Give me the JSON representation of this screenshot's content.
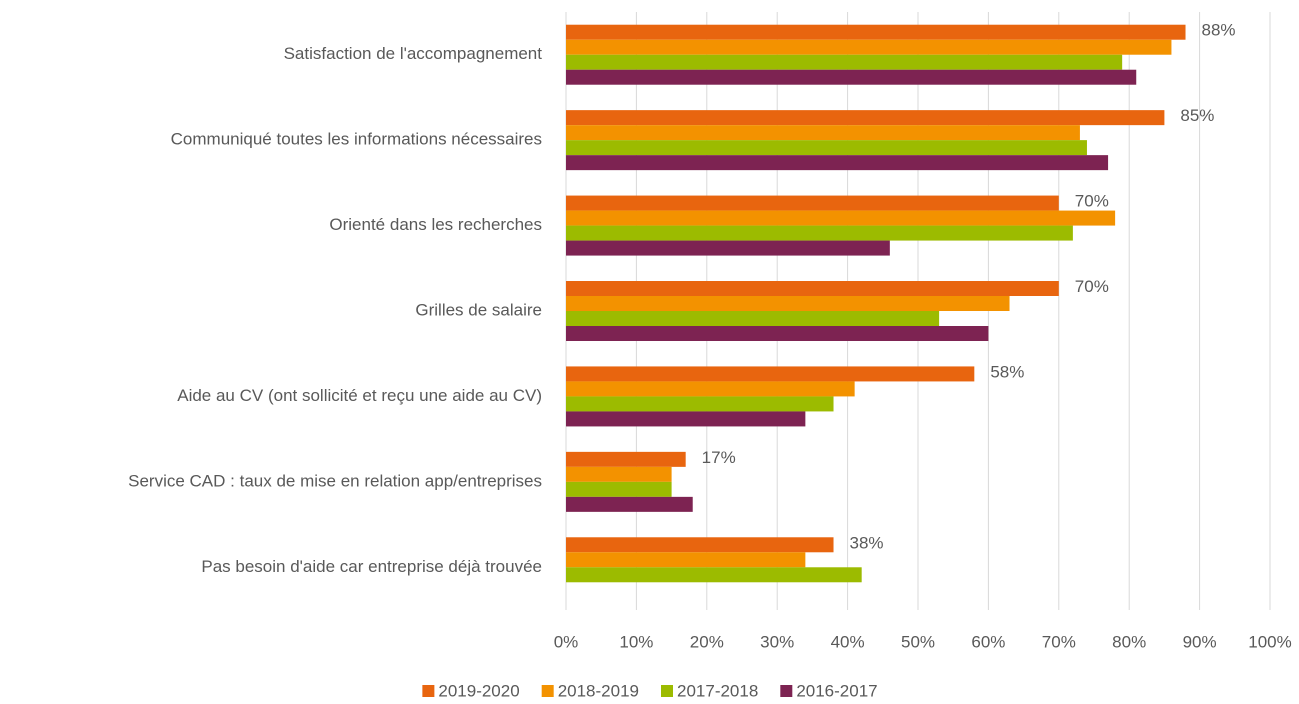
{
  "chart_data": {
    "type": "hbar",
    "categories": [
      "Satisfaction de l'accompagnement",
      "Communiqué toutes les informations nécessaires",
      "Orienté dans les recherches",
      "Grilles de salaire",
      "Aide au CV (ont sollicité et reçu une aide au CV)",
      "Service CAD : taux de mise en relation app/entreprises",
      "Pas besoin d'aide car entreprise déjà trouvée"
    ],
    "series": [
      {
        "name": "2019-2020",
        "color": "#e8650f",
        "values": [
          88,
          85,
          70,
          70,
          58,
          17,
          38
        ],
        "value_labels": [
          "88%",
          "85%",
          "70%",
          "70%",
          "58%",
          "17%",
          "38%"
        ]
      },
      {
        "name": "2018-2019",
        "color": "#f39200",
        "values": [
          86,
          73,
          78,
          63,
          41,
          15,
          34
        ]
      },
      {
        "name": "2017-2018",
        "color": "#9cbb00",
        "values": [
          79,
          74,
          72,
          53,
          38,
          15,
          42
        ]
      },
      {
        "name": "2016-2017",
        "color": "#7d2352",
        "values": [
          81,
          77,
          46,
          60,
          34,
          18,
          null
        ]
      }
    ],
    "xlim": [
      0,
      100
    ],
    "xticks": [
      {
        "value": 0,
        "label": "0%"
      },
      {
        "value": 10,
        "label": "10%"
      },
      {
        "value": 20,
        "label": "20%"
      },
      {
        "value": 30,
        "label": "30%"
      },
      {
        "value": 40,
        "label": "40%"
      },
      {
        "value": 50,
        "label": "50%"
      },
      {
        "value": 60,
        "label": "60%"
      },
      {
        "value": 70,
        "label": "70%"
      },
      {
        "value": 80,
        "label": "80%"
      },
      {
        "value": 90,
        "label": "90%"
      },
      {
        "value": 100,
        "label": "100%"
      }
    ],
    "grid": true,
    "legend": "bottom"
  }
}
